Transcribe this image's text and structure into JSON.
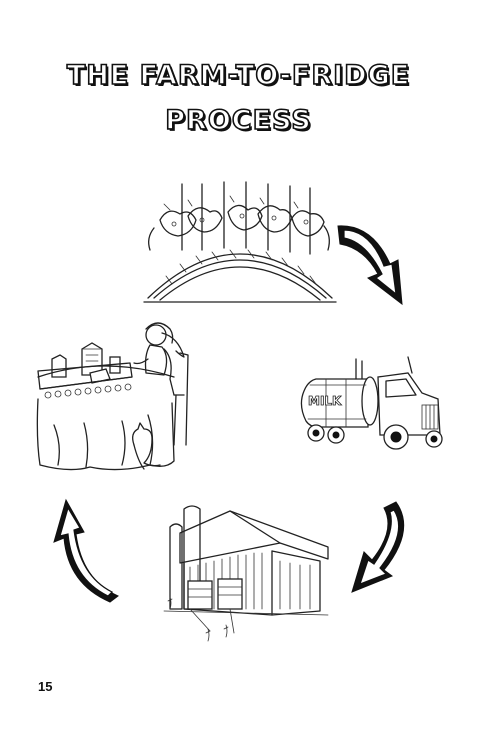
{
  "title": {
    "line1": "THE FARM-TO-FRIDGE",
    "line2": "PROCESS"
  },
  "stages": [
    {
      "name": "cows-in-barn",
      "order": 1
    },
    {
      "name": "milk-truck",
      "order": 2,
      "label": "MILK"
    },
    {
      "name": "processing-plant",
      "order": 3
    },
    {
      "name": "family-table",
      "order": 4
    }
  ],
  "page_number": "15"
}
